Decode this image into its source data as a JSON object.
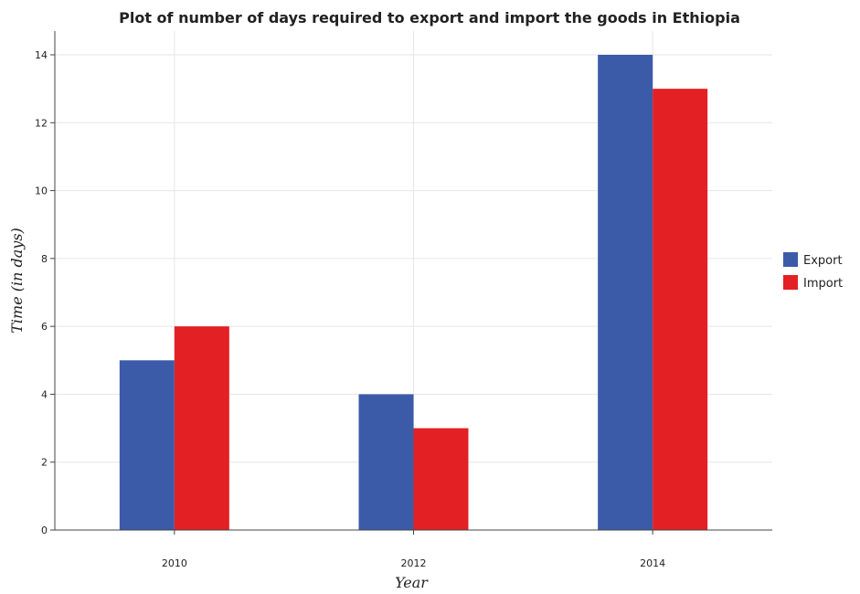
{
  "chart_data": {
    "type": "bar",
    "title": "Plot of number of days required to export and import the goods in Ethiopia",
    "xlabel": "Year",
    "ylabel": "Time (in days)",
    "categories": [
      "2010",
      "2012",
      "2014"
    ],
    "series": [
      {
        "name": "Export",
        "values": [
          5,
          4,
          14
        ],
        "color": "#3b5ba9"
      },
      {
        "name": "Import",
        "values": [
          6,
          3,
          13
        ],
        "color": "#e32024"
      }
    ],
    "ylim": [
      0,
      14.7
    ],
    "yticks": [
      "0",
      "2",
      "4",
      "6",
      "8",
      "10",
      "12",
      "14"
    ],
    "grid": true,
    "legend_position": "right"
  }
}
